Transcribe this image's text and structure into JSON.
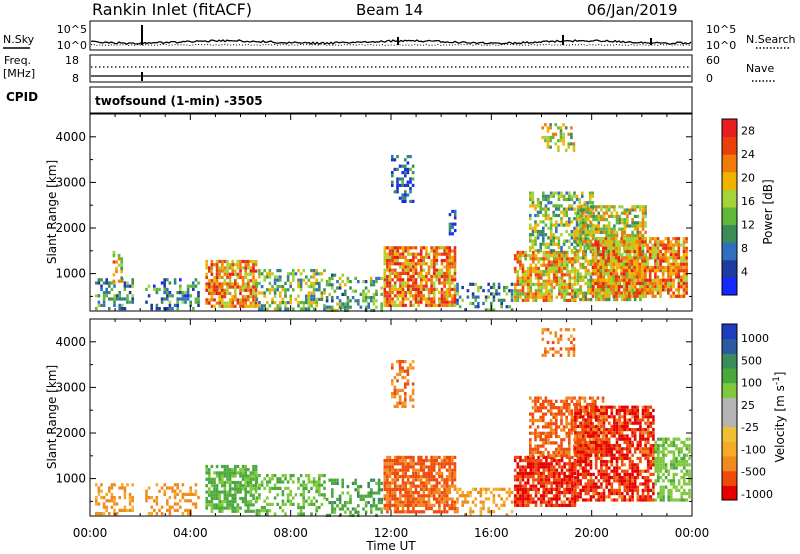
{
  "header": {
    "station": "Rankin Inlet (fitACF)",
    "beam": "Beam 14",
    "date": "06/Jan/2019"
  },
  "top_panel": {
    "nsky_label": "N.Sky",
    "nsearch_label": "N.Search",
    "left_ticks": [
      "10^5",
      "10^0"
    ],
    "right_ticks": [
      "10^5",
      "10^0"
    ]
  },
  "freq_panel": {
    "freq_label": "Freq.",
    "freq_unit": "[MHz]",
    "nave_label": "Nave",
    "left_ticks": [
      "18",
      "8"
    ],
    "right_ticks": [
      "60",
      "0"
    ]
  },
  "cpid": {
    "label": "CPID",
    "text": "twofsound (1-min) -3505"
  },
  "colors": {
    "power_scale": [
      "#1428ff",
      "#1e3ca0",
      "#2f6fbf",
      "#3c8c5a",
      "#5fb83a",
      "#a6d23a",
      "#f0b400",
      "#f07a0a",
      "#e8400a",
      "#e61e1e"
    ],
    "velocity_scale": [
      "#e60000",
      "#f04a0a",
      "#f08a1e",
      "#f5aa28",
      "#f0c032",
      "#b4b4b4",
      "#b4b4b4",
      "#80c83c",
      "#4aa83c",
      "#3a8c5a",
      "#2a5aa0",
      "#1e3cbe"
    ]
  },
  "chart_data": [
    {
      "type": "heatmap",
      "title": "",
      "xlabel": "",
      "ylabel": "Slant Range [km]",
      "x_ticks": [
        "00:00",
        "04:00",
        "08:00",
        "12:00",
        "16:00",
        "20:00",
        "00:00"
      ],
      "y_ticks": [
        1000,
        2000,
        3000,
        4000
      ],
      "ylim": [
        180,
        4500
      ],
      "xlim_hours": [
        0,
        24
      ],
      "colorbar": {
        "label": "Power [dB]",
        "ticks": [
          4,
          8,
          12,
          16,
          20,
          24,
          28
        ],
        "range": [
          0,
          30
        ]
      },
      "regions": [
        {
          "t0": 0.2,
          "t1": 1.7,
          "r0": 200,
          "r1": 900,
          "level": 10,
          "density": 0.45
        },
        {
          "t0": 0.9,
          "t1": 1.3,
          "r0": 800,
          "r1": 1500,
          "level": 18,
          "density": 0.5
        },
        {
          "t0": 2.2,
          "t1": 4.3,
          "r0": 200,
          "r1": 900,
          "level": 9,
          "density": 0.4
        },
        {
          "t0": 4.6,
          "t1": 6.6,
          "r0": 250,
          "r1": 1300,
          "level": 22,
          "density": 0.75
        },
        {
          "t0": 6.6,
          "t1": 9.3,
          "r0": 200,
          "r1": 1100,
          "level": 14,
          "density": 0.45
        },
        {
          "t0": 9.4,
          "t1": 11.6,
          "r0": 200,
          "r1": 1000,
          "level": 12,
          "density": 0.4
        },
        {
          "t0": 11.7,
          "t1": 14.6,
          "r0": 300,
          "r1": 1600,
          "level": 22,
          "density": 0.8
        },
        {
          "t0": 12.0,
          "t1": 12.9,
          "r0": 2600,
          "r1": 3600,
          "level": 6,
          "density": 0.4
        },
        {
          "t0": 14.3,
          "t1": 14.6,
          "r0": 1800,
          "r1": 2400,
          "level": 5,
          "density": 0.5
        },
        {
          "t0": 14.6,
          "t1": 16.8,
          "r0": 200,
          "r1": 800,
          "level": 10,
          "density": 0.35
        },
        {
          "t0": 16.9,
          "t1": 19.3,
          "r0": 400,
          "r1": 1500,
          "level": 20,
          "density": 0.8
        },
        {
          "t0": 17.5,
          "t1": 20.0,
          "r0": 1500,
          "r1": 2800,
          "level": 14,
          "density": 0.55
        },
        {
          "t0": 19.3,
          "t1": 22.2,
          "r0": 400,
          "r1": 2500,
          "level": 17,
          "density": 0.7
        },
        {
          "t0": 20.0,
          "t1": 23.8,
          "r0": 500,
          "r1": 1800,
          "level": 22,
          "density": 0.8
        },
        {
          "t0": 18.0,
          "t1": 19.3,
          "r0": 3700,
          "r1": 4300,
          "level": 16,
          "density": 0.4
        }
      ]
    },
    {
      "type": "heatmap",
      "title": "",
      "xlabel": "Time UT",
      "ylabel": "Slant Range [km]",
      "x_ticks": [
        "00:00",
        "04:00",
        "08:00",
        "12:00",
        "16:00",
        "20:00",
        "00:00"
      ],
      "y_ticks": [
        1000,
        2000,
        3000,
        4000
      ],
      "ylim": [
        180,
        4500
      ],
      "xlim_hours": [
        0,
        24
      ],
      "colorbar": {
        "label": "Velocity [m s^-1]",
        "ticks": [
          "1000",
          "500",
          "100",
          "25",
          "-25",
          "-100",
          "-500",
          "-1000"
        ]
      },
      "regions": [
        {
          "t0": 0.2,
          "t1": 1.7,
          "r0": 200,
          "r1": 900,
          "level": -100,
          "density": 0.45
        },
        {
          "t0": 2.2,
          "t1": 4.3,
          "r0": 200,
          "r1": 900,
          "level": -150,
          "density": 0.4
        },
        {
          "t0": 4.6,
          "t1": 6.6,
          "r0": 250,
          "r1": 1300,
          "level": 150,
          "density": 0.7
        },
        {
          "t0": 6.6,
          "t1": 9.3,
          "r0": 200,
          "r1": 1100,
          "level": 100,
          "density": 0.45
        },
        {
          "t0": 9.4,
          "t1": 11.6,
          "r0": 200,
          "r1": 1000,
          "level": 200,
          "density": 0.4
        },
        {
          "t0": 11.7,
          "t1": 14.6,
          "r0": 300,
          "r1": 1500,
          "level": -300,
          "density": 0.8
        },
        {
          "t0": 12.0,
          "t1": 12.9,
          "r0": 2600,
          "r1": 3600,
          "level": -200,
          "density": 0.4
        },
        {
          "t0": 14.6,
          "t1": 16.8,
          "r0": 200,
          "r1": 800,
          "level": -100,
          "density": 0.35
        },
        {
          "t0": 16.9,
          "t1": 19.3,
          "r0": 400,
          "r1": 1500,
          "level": -500,
          "density": 0.8
        },
        {
          "t0": 17.5,
          "t1": 20.5,
          "r0": 1500,
          "r1": 2800,
          "level": -300,
          "density": 0.6
        },
        {
          "t0": 19.3,
          "t1": 22.5,
          "r0": 500,
          "r1": 2600,
          "level": -500,
          "density": 0.75
        },
        {
          "t0": 22.5,
          "t1": 23.9,
          "r0": 500,
          "r1": 1900,
          "level": 80,
          "density": 0.6
        },
        {
          "t0": 18.0,
          "t1": 19.3,
          "r0": 3700,
          "r1": 4300,
          "level": -200,
          "density": 0.4
        }
      ]
    }
  ]
}
